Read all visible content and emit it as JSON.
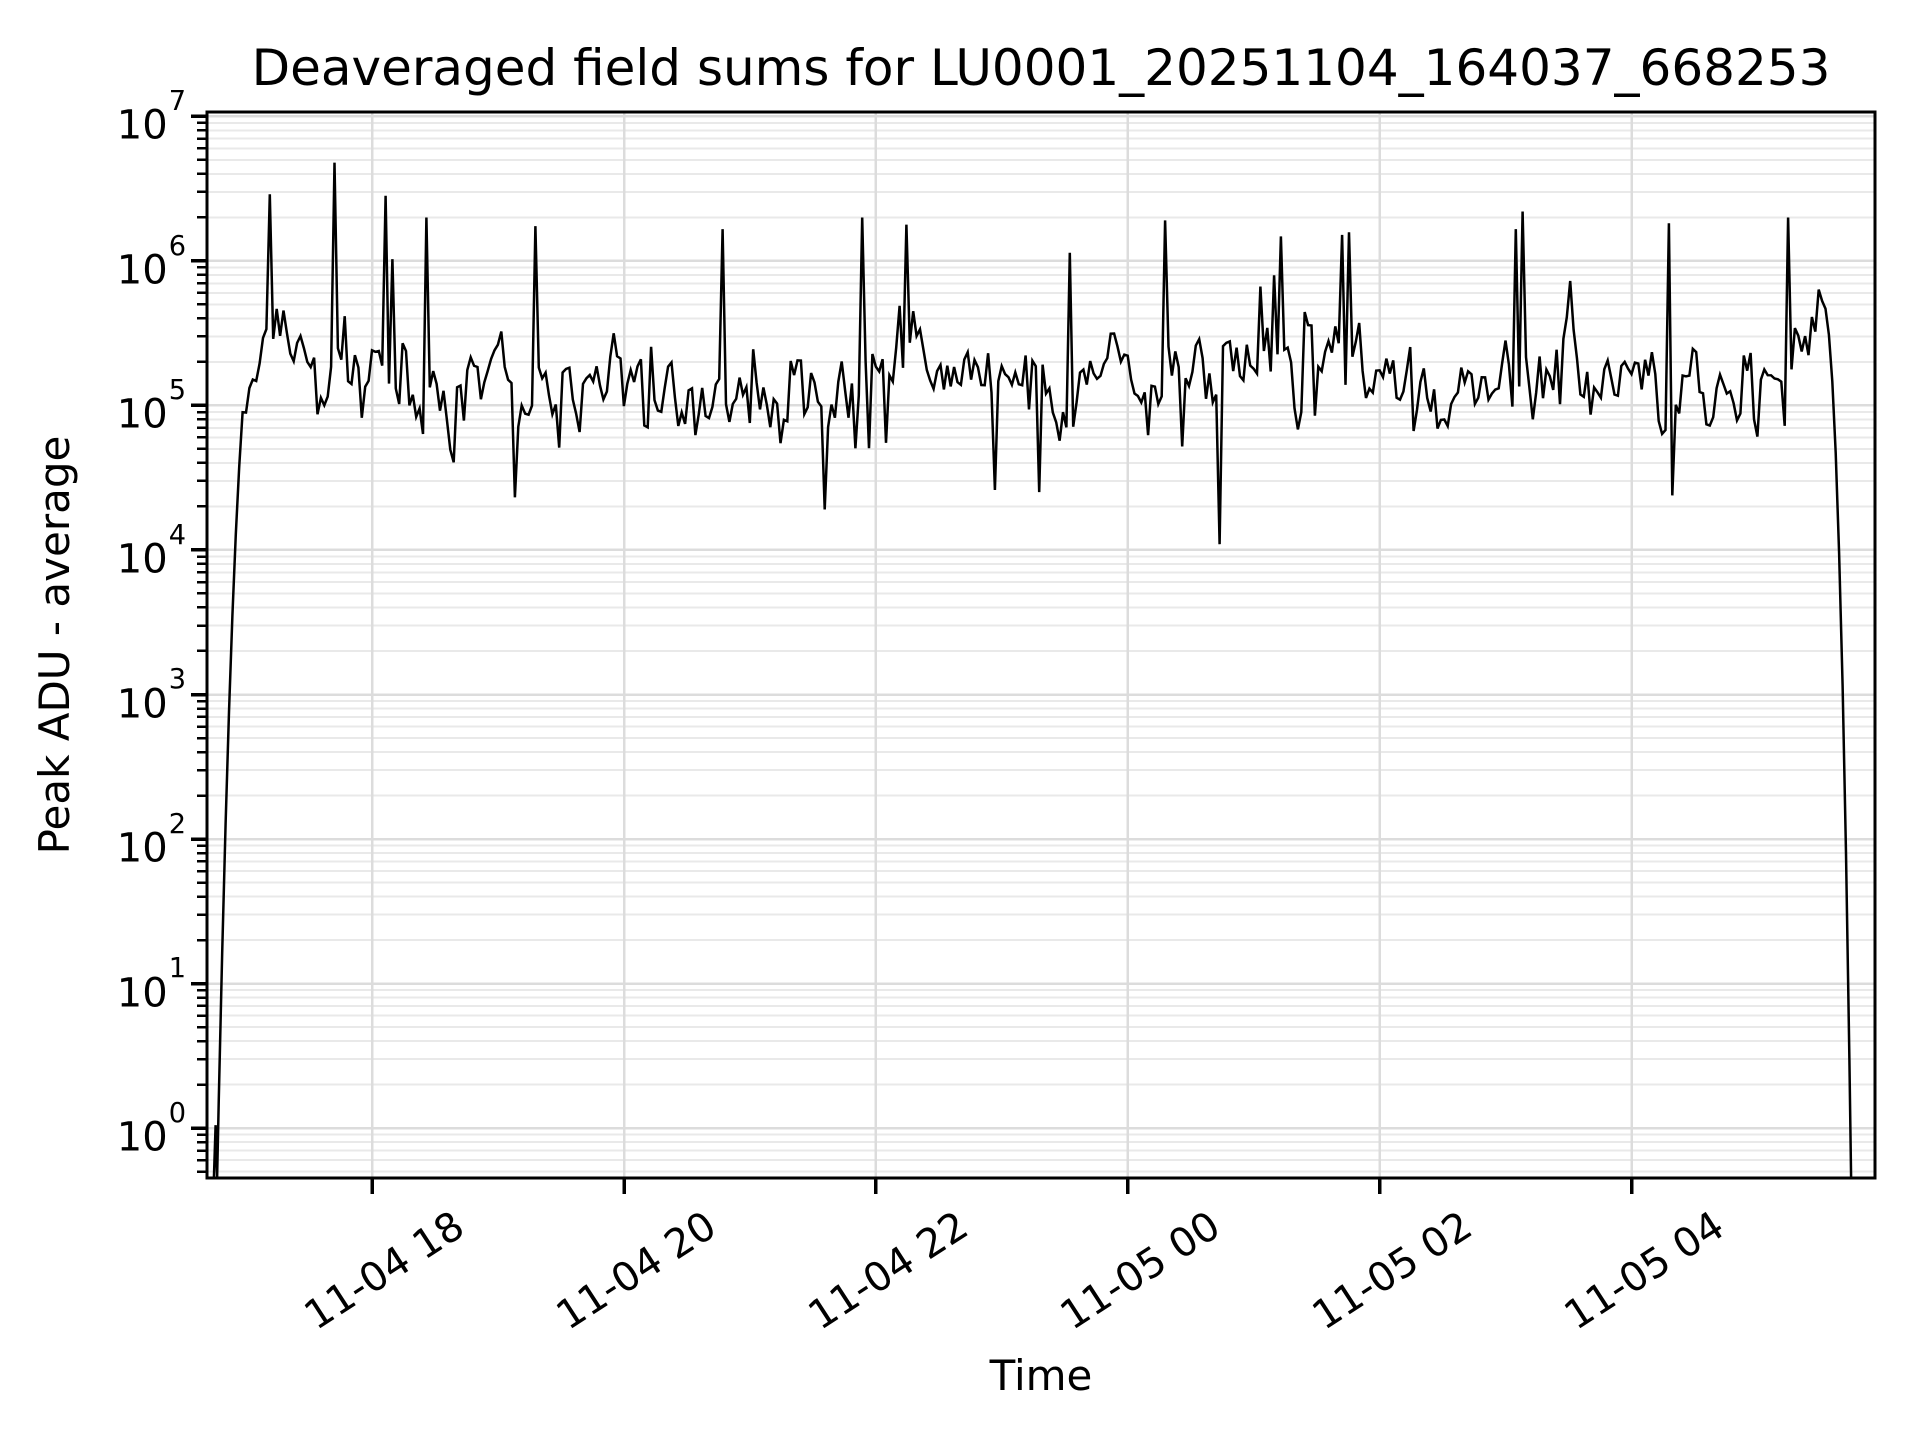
{
  "chart_data": {
    "type": "line",
    "title": "Deaveraged field sums for LU0001_20251104_164037_668253",
    "xlabel": "Time",
    "ylabel": "Peak ADU - average",
    "y_scale": "log",
    "ylim_log10": [
      -0.345,
      7.03
    ],
    "y_tick_exponents": [
      0,
      1,
      2,
      3,
      4,
      5,
      6,
      7
    ],
    "y_tick_base": "10",
    "y_minor_multiples": [
      2,
      3,
      4,
      5,
      6,
      7,
      8,
      9
    ],
    "x_tick_labels": [
      "11-04 18",
      "11-04 20",
      "11-04 22",
      "11-05 00",
      "11-05 02",
      "11-05 04"
    ],
    "x_tick_hours": [
      1.31,
      3.31,
      5.31,
      7.31,
      9.31,
      11.31
    ],
    "x_range_hours": [
      0,
      13.24
    ],
    "grid": {
      "which": "both",
      "major_color": "#dcdcdc",
      "minor_color": "#e9e9e9"
    },
    "line_color": "#000000",
    "background_color": "#ffffff",
    "axis_color": "#000000",
    "series": {
      "name": "Peak ADU - average",
      "n_points": 480,
      "seed": 1104,
      "band_log10_mean": 5.17,
      "band_log10_sigma": 0.2,
      "band_ar1": 0.6,
      "spike_prob": 0.035,
      "spike_log10_amp": [
        0.3,
        1.05
      ],
      "dip_prob": 0.028,
      "dip_log10_amp": [
        0.25,
        0.7
      ],
      "slow_drift": [
        [
          0.9,
          0.3,
          0.07
        ],
        [
          2.3,
          1.2,
          0.05
        ],
        [
          0.35,
          4.0,
          0.06
        ]
      ],
      "start_bump": [
        [
          0.055,
          -0.345
        ],
        [
          0.068,
          0.02
        ],
        [
          0.08,
          -0.345
        ]
      ],
      "ramp_up": {
        "t0": 0.08,
        "t1": 0.46,
        "top_log10": 5.8
      },
      "ramp_down": {
        "t0": 12.8,
        "t1": 13.05,
        "from_log10": 5.75,
        "to_log10": -0.345
      },
      "shoulder_bumps": [
        {
          "t": 0.52,
          "amp": 0.42,
          "width": 0.28
        },
        {
          "t": 12.72,
          "amp": 0.38,
          "width": 0.25
        }
      ],
      "feature_spikes": [
        [
          1.0,
          6.68
        ],
        [
          1.43,
          6.45
        ],
        [
          1.75,
          6.3
        ],
        [
          2.6,
          6.24
        ],
        [
          4.1,
          6.22
        ],
        [
          5.2,
          6.3
        ],
        [
          5.55,
          6.25
        ],
        [
          7.6,
          6.28
        ],
        [
          9.0,
          6.18
        ],
        [
          10.4,
          6.22
        ],
        [
          11.6,
          6.26
        ],
        [
          12.55,
          6.3
        ]
      ],
      "feature_dips": [
        [
          4.9,
          4.28
        ],
        [
          6.6,
          4.4
        ],
        [
          8.03,
          4.04
        ]
      ]
    }
  }
}
